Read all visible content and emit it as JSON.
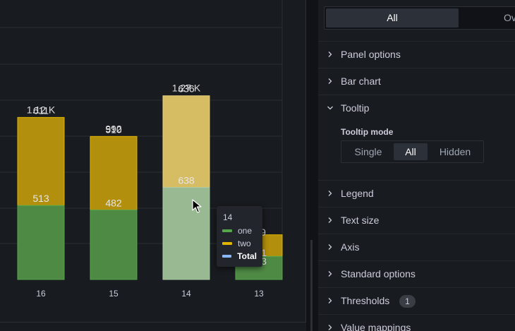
{
  "chart_data": {
    "type": "bar",
    "stacked": true,
    "categories": [
      "16",
      "15",
      "14",
      "13"
    ],
    "series": [
      {
        "name": "one",
        "color": "#56a64b",
        "values": [
          513,
          482,
          638,
          160
        ]
      },
      {
        "name": "two",
        "color": "#e0b400",
        "values": [
          611,
          510,
          636,
          150
        ]
      },
      {
        "name": "Total",
        "color": "#8ab8ff",
        "values": [
          1124,
          992,
          1274,
          310
        ]
      }
    ],
    "top_labels": [
      "1.12 K",
      "992",
      "1.27 K",
      ""
    ],
    "mid_labels": [
      "611",
      "510",
      "636",
      ""
    ],
    "low_labels": [
      "513",
      "482",
      "638",
      ""
    ],
    "partial_labels": [
      "9",
      "1",
      "3"
    ],
    "highlighted_category": "14",
    "grid": true,
    "legend": "none"
  },
  "tooltip": {
    "title": "14",
    "items": [
      {
        "name": "one",
        "color": "#56a64b"
      },
      {
        "name": "two",
        "color": "#e0b400"
      },
      {
        "name": "Total",
        "color": "#8ab8ff"
      }
    ]
  },
  "options": {
    "tabs": {
      "all": "All",
      "overrides": "Ov"
    },
    "sections": {
      "panel_options": "Panel options",
      "bar_chart": "Bar chart",
      "tooltip": "Tooltip",
      "legend": "Legend",
      "text_size": "Text size",
      "axis": "Axis",
      "standard_options": "Standard options",
      "thresholds": "Thresholds",
      "value_mappings": "Value mappings"
    },
    "thresholds_count": "1",
    "tooltip_mode": {
      "label": "Tooltip mode",
      "single": "Single",
      "all": "All",
      "hidden": "Hidden",
      "selected": "All"
    }
  }
}
